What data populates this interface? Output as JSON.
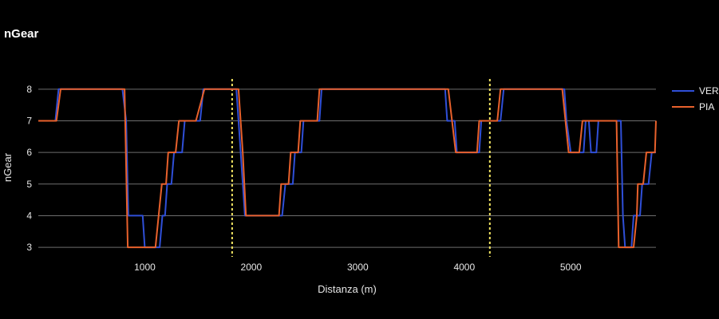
{
  "chart_data": {
    "type": "line",
    "title": "nGear",
    "xlabel": "Distanza (m)",
    "ylabel": "nGear",
    "xlim": [
      0,
      5800
    ],
    "ylim": [
      2.7,
      8.5
    ],
    "xticks": [
      1000,
      2000,
      3000,
      4000,
      5000
    ],
    "yticks": [
      3,
      4,
      5,
      6,
      7,
      8
    ],
    "grid": "horizontal",
    "legend_position": "right",
    "vlines": [
      1820,
      4240
    ],
    "vline_color": "#f5e663",
    "series": [
      {
        "name": "VER",
        "color": "#2f4fd8",
        "points": [
          [
            0,
            7
          ],
          [
            160,
            7
          ],
          [
            190,
            8
          ],
          [
            790,
            8
          ],
          [
            825,
            7
          ],
          [
            845,
            4
          ],
          [
            980,
            4
          ],
          [
            1000,
            3
          ],
          [
            1140,
            3
          ],
          [
            1165,
            4
          ],
          [
            1190,
            4
          ],
          [
            1210,
            5
          ],
          [
            1250,
            5
          ],
          [
            1275,
            6
          ],
          [
            1350,
            6
          ],
          [
            1375,
            7
          ],
          [
            1520,
            7
          ],
          [
            1550,
            8
          ],
          [
            1860,
            8
          ],
          [
            1900,
            6
          ],
          [
            1940,
            4
          ],
          [
            2290,
            4
          ],
          [
            2320,
            5
          ],
          [
            2390,
            5
          ],
          [
            2410,
            6
          ],
          [
            2470,
            6
          ],
          [
            2490,
            7
          ],
          [
            2640,
            7
          ],
          [
            2660,
            8
          ],
          [
            3820,
            8
          ],
          [
            3840,
            7
          ],
          [
            3910,
            7
          ],
          [
            3930,
            6
          ],
          [
            4140,
            6
          ],
          [
            4160,
            7
          ],
          [
            4340,
            7
          ],
          [
            4370,
            8
          ],
          [
            4940,
            8
          ],
          [
            4960,
            7
          ],
          [
            5000,
            6
          ],
          [
            5120,
            6
          ],
          [
            5140,
            7
          ],
          [
            5170,
            7
          ],
          [
            5190,
            6
          ],
          [
            5240,
            6
          ],
          [
            5260,
            7
          ],
          [
            5470,
            7
          ],
          [
            5490,
            4
          ],
          [
            5510,
            3
          ],
          [
            5570,
            3
          ],
          [
            5590,
            4
          ],
          [
            5650,
            4
          ],
          [
            5670,
            5
          ],
          [
            5730,
            5
          ],
          [
            5760,
            6
          ],
          [
            5800,
            6
          ]
        ]
      },
      {
        "name": "PIA",
        "color": "#e8612c",
        "points": [
          [
            0,
            7
          ],
          [
            170,
            7
          ],
          [
            210,
            8
          ],
          [
            810,
            8
          ],
          [
            840,
            3
          ],
          [
            1100,
            3
          ],
          [
            1130,
            4
          ],
          [
            1160,
            5
          ],
          [
            1200,
            5
          ],
          [
            1220,
            6
          ],
          [
            1290,
            6
          ],
          [
            1320,
            7
          ],
          [
            1480,
            7
          ],
          [
            1560,
            8
          ],
          [
            1880,
            8
          ],
          [
            1920,
            6
          ],
          [
            1950,
            4
          ],
          [
            2260,
            4
          ],
          [
            2280,
            5
          ],
          [
            2350,
            5
          ],
          [
            2370,
            6
          ],
          [
            2440,
            6
          ],
          [
            2460,
            7
          ],
          [
            2620,
            7
          ],
          [
            2640,
            8
          ],
          [
            3850,
            8
          ],
          [
            3920,
            6
          ],
          [
            4120,
            6
          ],
          [
            4140,
            7
          ],
          [
            4310,
            7
          ],
          [
            4340,
            8
          ],
          [
            4920,
            8
          ],
          [
            4980,
            6
          ],
          [
            5080,
            6
          ],
          [
            5110,
            7
          ],
          [
            5430,
            7
          ],
          [
            5450,
            3
          ],
          [
            5590,
            3
          ],
          [
            5620,
            4
          ],
          [
            5630,
            5
          ],
          [
            5680,
            5
          ],
          [
            5710,
            6
          ],
          [
            5790,
            6
          ],
          [
            5800,
            7
          ]
        ]
      }
    ]
  }
}
